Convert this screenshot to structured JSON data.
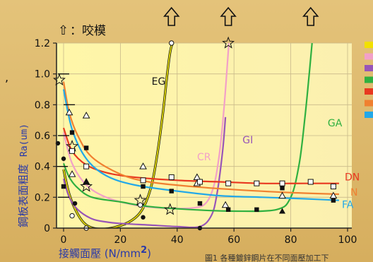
{
  "legend_note": {
    "arrow_glyph": "⇧",
    "text": "：咬模"
  },
  "chart_data": {
    "type": "line",
    "title": "",
    "xlabel": "接觸面壓 (N/mm",
    "xlabel_sup": "2",
    "xlabel_close": ")",
    "ylabel_cn": "鋼板表面粗度",
    "ylabel_unit": "Ra(um)",
    "xlim": [
      0,
      100
    ],
    "ylim": [
      0,
      1.2
    ],
    "xticks": [
      "0",
      "20",
      "40",
      "60",
      "80",
      "100"
    ],
    "yticks": [
      "0",
      "0.2",
      "0.4",
      "0.6",
      "0.8",
      "1.0",
      "1.2"
    ],
    "caption": "圖1 各種鍍鋅鋼片在不同面壓加工下",
    "series": [
      {
        "name": "EG",
        "color": "#d8d000",
        "seizure_x": 38,
        "x": [
          0,
          2,
          5,
          8,
          12,
          18,
          24,
          28,
          31,
          33,
          35,
          36.5,
          37.5,
          38.3
        ],
        "y": [
          0.38,
          0.22,
          0.09,
          0.02,
          -0.005,
          0.005,
          0.05,
          0.13,
          0.28,
          0.48,
          0.75,
          1.0,
          1.14,
          1.2
        ]
      },
      {
        "name": "CR",
        "color": "#f2a0c8",
        "seizure_x": 58,
        "x": [
          0,
          3,
          8,
          15,
          25,
          35,
          45,
          50,
          53,
          55,
          56.5,
          57.5,
          58.2
        ],
        "y": [
          0.62,
          0.42,
          0.28,
          0.2,
          0.15,
          0.13,
          0.13,
          0.16,
          0.28,
          0.5,
          0.78,
          1.02,
          1.2
        ]
      },
      {
        "name": "GI",
        "color": "#9855b8",
        "seizure_x": 58,
        "x": [
          0,
          2,
          5,
          10,
          15,
          20,
          30,
          40,
          48,
          52,
          54,
          56,
          57
        ],
        "y": [
          0.32,
          0.2,
          0.12,
          0.06,
          0.04,
          0.03,
          0.02,
          0.01,
          0.01,
          0.08,
          0.22,
          0.5,
          0.72
        ]
      },
      {
        "name": "GA",
        "color": "#2fb040",
        "seizure_x": 87,
        "x": [
          0,
          2,
          5,
          10,
          20,
          30,
          45,
          60,
          75,
          80,
          83,
          85,
          86.5,
          87.5
        ],
        "y": [
          0.42,
          0.33,
          0.26,
          0.2,
          0.17,
          0.14,
          0.12,
          0.11,
          0.12,
          0.2,
          0.42,
          0.72,
          1.0,
          1.2
        ]
      },
      {
        "name": "DN",
        "color": "#e83820",
        "seizure_x": null,
        "x": [
          0,
          3,
          8,
          15,
          25,
          40,
          55,
          70,
          85,
          97
        ],
        "y": [
          0.65,
          0.5,
          0.41,
          0.36,
          0.33,
          0.31,
          0.3,
          0.29,
          0.29,
          0.29
        ]
      },
      {
        "name": "DN",
        "color": "#f08030",
        "seizure_x": null,
        "x": [
          0,
          2,
          5,
          10,
          20,
          30,
          45,
          60,
          80,
          97
        ],
        "y": [
          0.95,
          0.75,
          0.6,
          0.46,
          0.35,
          0.3,
          0.27,
          0.25,
          0.23,
          0.22
        ]
      },
      {
        "name": "FA",
        "color": "#22a8e8",
        "seizure_x": null,
        "x": [
          0,
          3,
          8,
          15,
          25,
          40,
          55,
          70,
          85,
          97
        ],
        "y": [
          0.9,
          0.64,
          0.45,
          0.34,
          0.28,
          0.24,
          0.21,
          0.2,
          0.19,
          0.18
        ]
      }
    ],
    "markers": [
      {
        "shape": "star",
        "x": -1.5,
        "y": 0.96
      },
      {
        "shape": "star",
        "x": 3,
        "y": 0.53
      },
      {
        "shape": "star",
        "x": 8,
        "y": 0.27
      },
      {
        "shape": "star",
        "x": 27,
        "y": 0.18
      },
      {
        "shape": "star",
        "x": 37.5,
        "y": 0.12
      },
      {
        "shape": "star",
        "x": 58,
        "y": 1.2
      },
      {
        "shape": "tri",
        "x": 2,
        "y": 0.75
      },
      {
        "shape": "tri",
        "x": 8,
        "y": 0.73
      },
      {
        "shape": "tri",
        "x": 28,
        "y": 0.4
      },
      {
        "shape": "tri",
        "x": 47,
        "y": 0.33
      },
      {
        "shape": "tri",
        "x": 47,
        "y": 0.29
      },
      {
        "shape": "tri",
        "x": 57,
        "y": 0.15
      },
      {
        "shape": "tri",
        "x": 77,
        "y": 0.21
      },
      {
        "shape": "tri",
        "x": 95,
        "y": 0.21
      },
      {
        "shape": "tri",
        "x": 3,
        "y": 0.35
      },
      {
        "shape": "tri",
        "x": 8,
        "y": 0.3
      },
      {
        "shape": "ftri",
        "x": 8,
        "y": 0.3
      },
      {
        "shape": "ftri",
        "x": 77,
        "y": 0.11
      },
      {
        "shape": "fsq",
        "x": 3,
        "y": 0.62
      },
      {
        "shape": "fsq",
        "x": 8,
        "y": 0.52
      },
      {
        "shape": "fsq",
        "x": 28,
        "y": 0.27
      },
      {
        "shape": "fsq",
        "x": 38,
        "y": 0.24
      },
      {
        "shape": "fsq",
        "x": 48,
        "y": 0.16
      },
      {
        "shape": "fsq",
        "x": 58,
        "y": 0.12
      },
      {
        "shape": "fsq",
        "x": 68,
        "y": 0.12
      },
      {
        "shape": "fsq",
        "x": 77,
        "y": 0.26
      },
      {
        "shape": "fsq",
        "x": 95,
        "y": 0.18
      },
      {
        "shape": "fsq",
        "x": 0,
        "y": 0.27
      },
      {
        "shape": "sq",
        "x": 8,
        "y": 0.4
      },
      {
        "shape": "sq",
        "x": 28,
        "y": 0.31
      },
      {
        "shape": "sq",
        "x": 38,
        "y": 0.33
      },
      {
        "shape": "sq",
        "x": 48,
        "y": 0.3
      },
      {
        "shape": "sq",
        "x": 58,
        "y": 0.29
      },
      {
        "shape": "sq",
        "x": 68,
        "y": 0.29
      },
      {
        "shape": "sq",
        "x": 77,
        "y": 0.29
      },
      {
        "shape": "sq",
        "x": 87,
        "y": 0.3
      },
      {
        "shape": "sq",
        "x": 95,
        "y": 0.27
      },
      {
        "shape": "sq",
        "x": 3,
        "y": 0.5
      },
      {
        "shape": "dot",
        "x": -2,
        "y": 0.55
      },
      {
        "shape": "dot",
        "x": 4,
        "y": 0.16
      },
      {
        "shape": "dot",
        "x": 28,
        "y": 0.07
      },
      {
        "shape": "dot",
        "x": 48,
        "y": 0.0
      },
      {
        "shape": "dot",
        "x": 0,
        "y": 0.45
      },
      {
        "shape": "circ",
        "x": 3,
        "y": 0.08
      },
      {
        "shape": "circ",
        "x": 8,
        "y": 0.0
      },
      {
        "shape": "circ",
        "x": 38,
        "y": 1.2
      },
      {
        "shape": "circ",
        "x": 27,
        "y": 0.15
      },
      {
        "shape": "dash",
        "x": 0,
        "y": 1.0
      },
      {
        "shape": "dash",
        "x": 2,
        "y": 0.8
      },
      {
        "shape": "dash",
        "x": 0,
        "y": 0.6
      },
      {
        "shape": "dash",
        "x": -0.5,
        "y": 0.4
      },
      {
        "shape": "dash",
        "x": 0,
        "y": 0.2
      }
    ],
    "arrows_x": [
      38,
      58,
      87
    ],
    "series_labels": [
      {
        "text": "EG",
        "x": 31,
        "y": 0.93,
        "color": "#1a1a1a"
      },
      {
        "text": "CR",
        "x": 47,
        "y": 0.44,
        "color": "#f2a0c8"
      },
      {
        "text": "GI",
        "x": 63,
        "y": 0.55,
        "color": "#9855b8"
      },
      {
        "text": "GA",
        "x": 93,
        "y": 0.66,
        "color": "#2fb040"
      },
      {
        "text": "DN",
        "x": 99,
        "y": 0.31,
        "color": "#e83820"
      },
      {
        "text": "FA",
        "x": 98,
        "y": 0.13,
        "color": "#22a8e8"
      },
      {
        "text": "N",
        "x": 101,
        "y": 0.21,
        "color": "#f08030"
      }
    ],
    "side_legend_colors": [
      "#f2e000",
      "#f2a0c8",
      "#9855b8",
      "#2fb040",
      "#e83820",
      "#f08030",
      "#22a8e8"
    ]
  }
}
